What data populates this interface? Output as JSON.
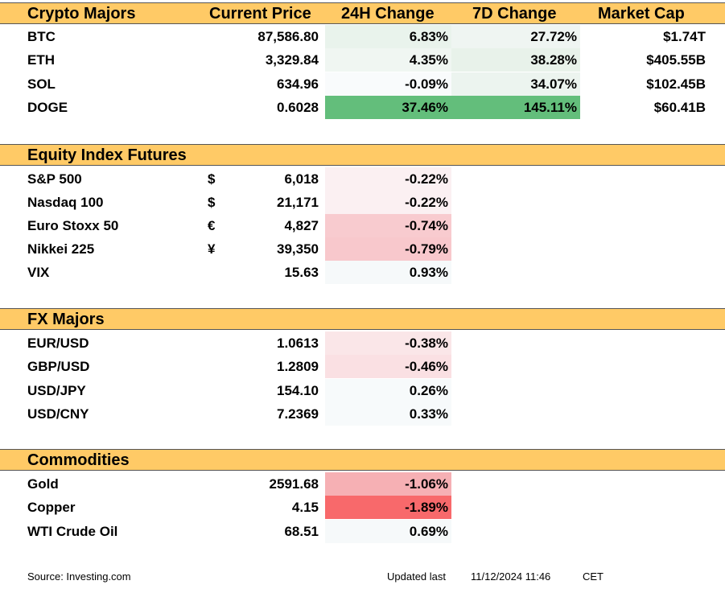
{
  "crypto": {
    "headers": [
      "Crypto Majors",
      "Current Price",
      "24H Change",
      "7D Change",
      "Market Cap"
    ],
    "rows": [
      {
        "name": "BTC",
        "price": "87,586.80",
        "change_24h": "6.83%",
        "change_7d": "27.72%",
        "mcap": "$1.74T",
        "color_24h": "#e9f3ec",
        "color_7d": "#eff5f2"
      },
      {
        "name": "ETH",
        "price": "3,329.84",
        "change_24h": "4.35%",
        "change_7d": "38.28%",
        "mcap": "$405.55B",
        "color_24h": "#f0f6f2",
        "color_7d": "#e8f2ea"
      },
      {
        "name": "SOL",
        "price": "634.96",
        "change_24h": "-0.09%",
        "change_7d": "34.07%",
        "mcap": "$102.45B",
        "color_24h": "#f9fbfc",
        "color_7d": "#ecf4ef"
      },
      {
        "name": "DOGE",
        "price": "0.6028",
        "change_24h": "37.46%",
        "change_7d": "145.11%",
        "mcap": "$60.41B",
        "color_24h": "#63be7b",
        "color_7d": "#63be7b"
      }
    ]
  },
  "equity": {
    "header": "Equity Index Futures",
    "rows": [
      {
        "name": "S&P 500",
        "symbol": "$",
        "price": "6,018",
        "change_24h": "-0.22%",
        "color_24h": "#fbf0f2"
      },
      {
        "name": "Nasdaq 100",
        "symbol": "$",
        "price": "21,171",
        "change_24h": "-0.22%",
        "color_24h": "#fbf0f2"
      },
      {
        "name": "Euro Stoxx 50",
        "symbol": "€",
        "price": "4,827",
        "change_24h": "-0.74%",
        "color_24h": "#f8cbcf"
      },
      {
        "name": "Nikkei 225",
        "symbol": "¥",
        "price": "39,350",
        "change_24h": "-0.79%",
        "color_24h": "#f8c8cc"
      },
      {
        "name": "VIX",
        "symbol": "",
        "price": "15.63",
        "change_24h": "0.93%",
        "color_24h": "#f6f9fa"
      }
    ]
  },
  "fx": {
    "header": "FX Majors",
    "rows": [
      {
        "name": "EUR/USD",
        "price": "1.0613",
        "change_24h": "-0.38%",
        "color_24h": "#fae6e8"
      },
      {
        "name": "GBP/USD",
        "price": "1.2809",
        "change_24h": "-0.46%",
        "color_24h": "#fae0e3"
      },
      {
        "name": "USD/JPY",
        "price": "154.10",
        "change_24h": "0.26%",
        "color_24h": "#f7fafb"
      },
      {
        "name": "USD/CNY",
        "price": "7.2369",
        "change_24h": "0.33%",
        "color_24h": "#f7fafb"
      }
    ]
  },
  "commodities": {
    "header": "Commodities",
    "rows": [
      {
        "name": "Gold",
        "price": "2591.68",
        "change_24h": "-1.06%",
        "color_24h": "#f6b0b4"
      },
      {
        "name": "Copper",
        "price": "4.15",
        "change_24h": "-1.89%",
        "color_24h": "#f8696b"
      },
      {
        "name": "WTI Crude Oil",
        "price": "68.51",
        "change_24h": "0.69%",
        "color_24h": "#f6f9fa"
      }
    ]
  },
  "footer": {
    "source": "Source: Investing.com",
    "updated_label": "Updated last",
    "timestamp": "11/12/2024 11:46",
    "timezone": "CET"
  }
}
